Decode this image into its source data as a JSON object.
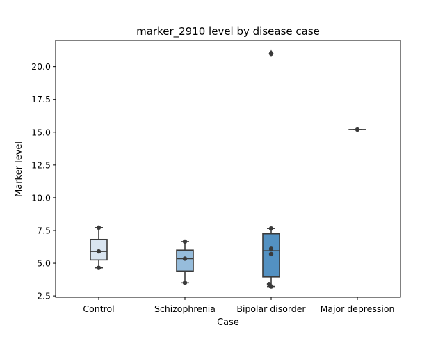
{
  "chart_data": {
    "type": "box",
    "title": "marker_2910 level by disease case",
    "xlabel": "Case",
    "ylabel": "Marker level",
    "categories": [
      "Control",
      "Schizophrenia",
      "Bipolar disorder",
      "Major depression"
    ],
    "ylim": [
      2.4,
      22.0
    ],
    "yticks": [
      2.5,
      5.0,
      7.5,
      10.0,
      12.5,
      15.0,
      17.5,
      20.0
    ],
    "ytick_labels": [
      "2.5",
      "5.0",
      "7.5",
      "10.0",
      "12.5",
      "15.0",
      "17.5",
      "20.0"
    ],
    "grid": false,
    "colors": [
      "#d9e5f1",
      "#96bcdb",
      "#5391c2",
      "#2b6aad"
    ],
    "edge_color": "#3a3a3a",
    "boxes": [
      {
        "category": "Control",
        "whislo": 4.65,
        "q1": 5.25,
        "med": 5.9,
        "q3": 6.82,
        "whishi": 7.72,
        "fliers": [],
        "points": [
          4.65,
          5.9,
          7.72
        ]
      },
      {
        "category": "Schizophrenia",
        "whislo": 3.5,
        "q1": 4.4,
        "med": 5.35,
        "q3": 6.0,
        "whishi": 6.65,
        "fliers": [],
        "points": [
          3.5,
          5.35,
          6.65
        ]
      },
      {
        "category": "Bipolar disorder",
        "whislo": 3.22,
        "q1": 3.95,
        "med": 5.95,
        "q3": 7.25,
        "whishi": 7.65,
        "fliers": [
          21.0
        ],
        "points": [
          3.22,
          3.4,
          5.7,
          6.1,
          7.65,
          21.0
        ]
      },
      {
        "category": "Major depression",
        "whislo": 15.2,
        "q1": 15.2,
        "med": 15.2,
        "q3": 15.2,
        "whishi": 15.2,
        "fliers": [],
        "points": [
          15.2
        ]
      }
    ]
  }
}
